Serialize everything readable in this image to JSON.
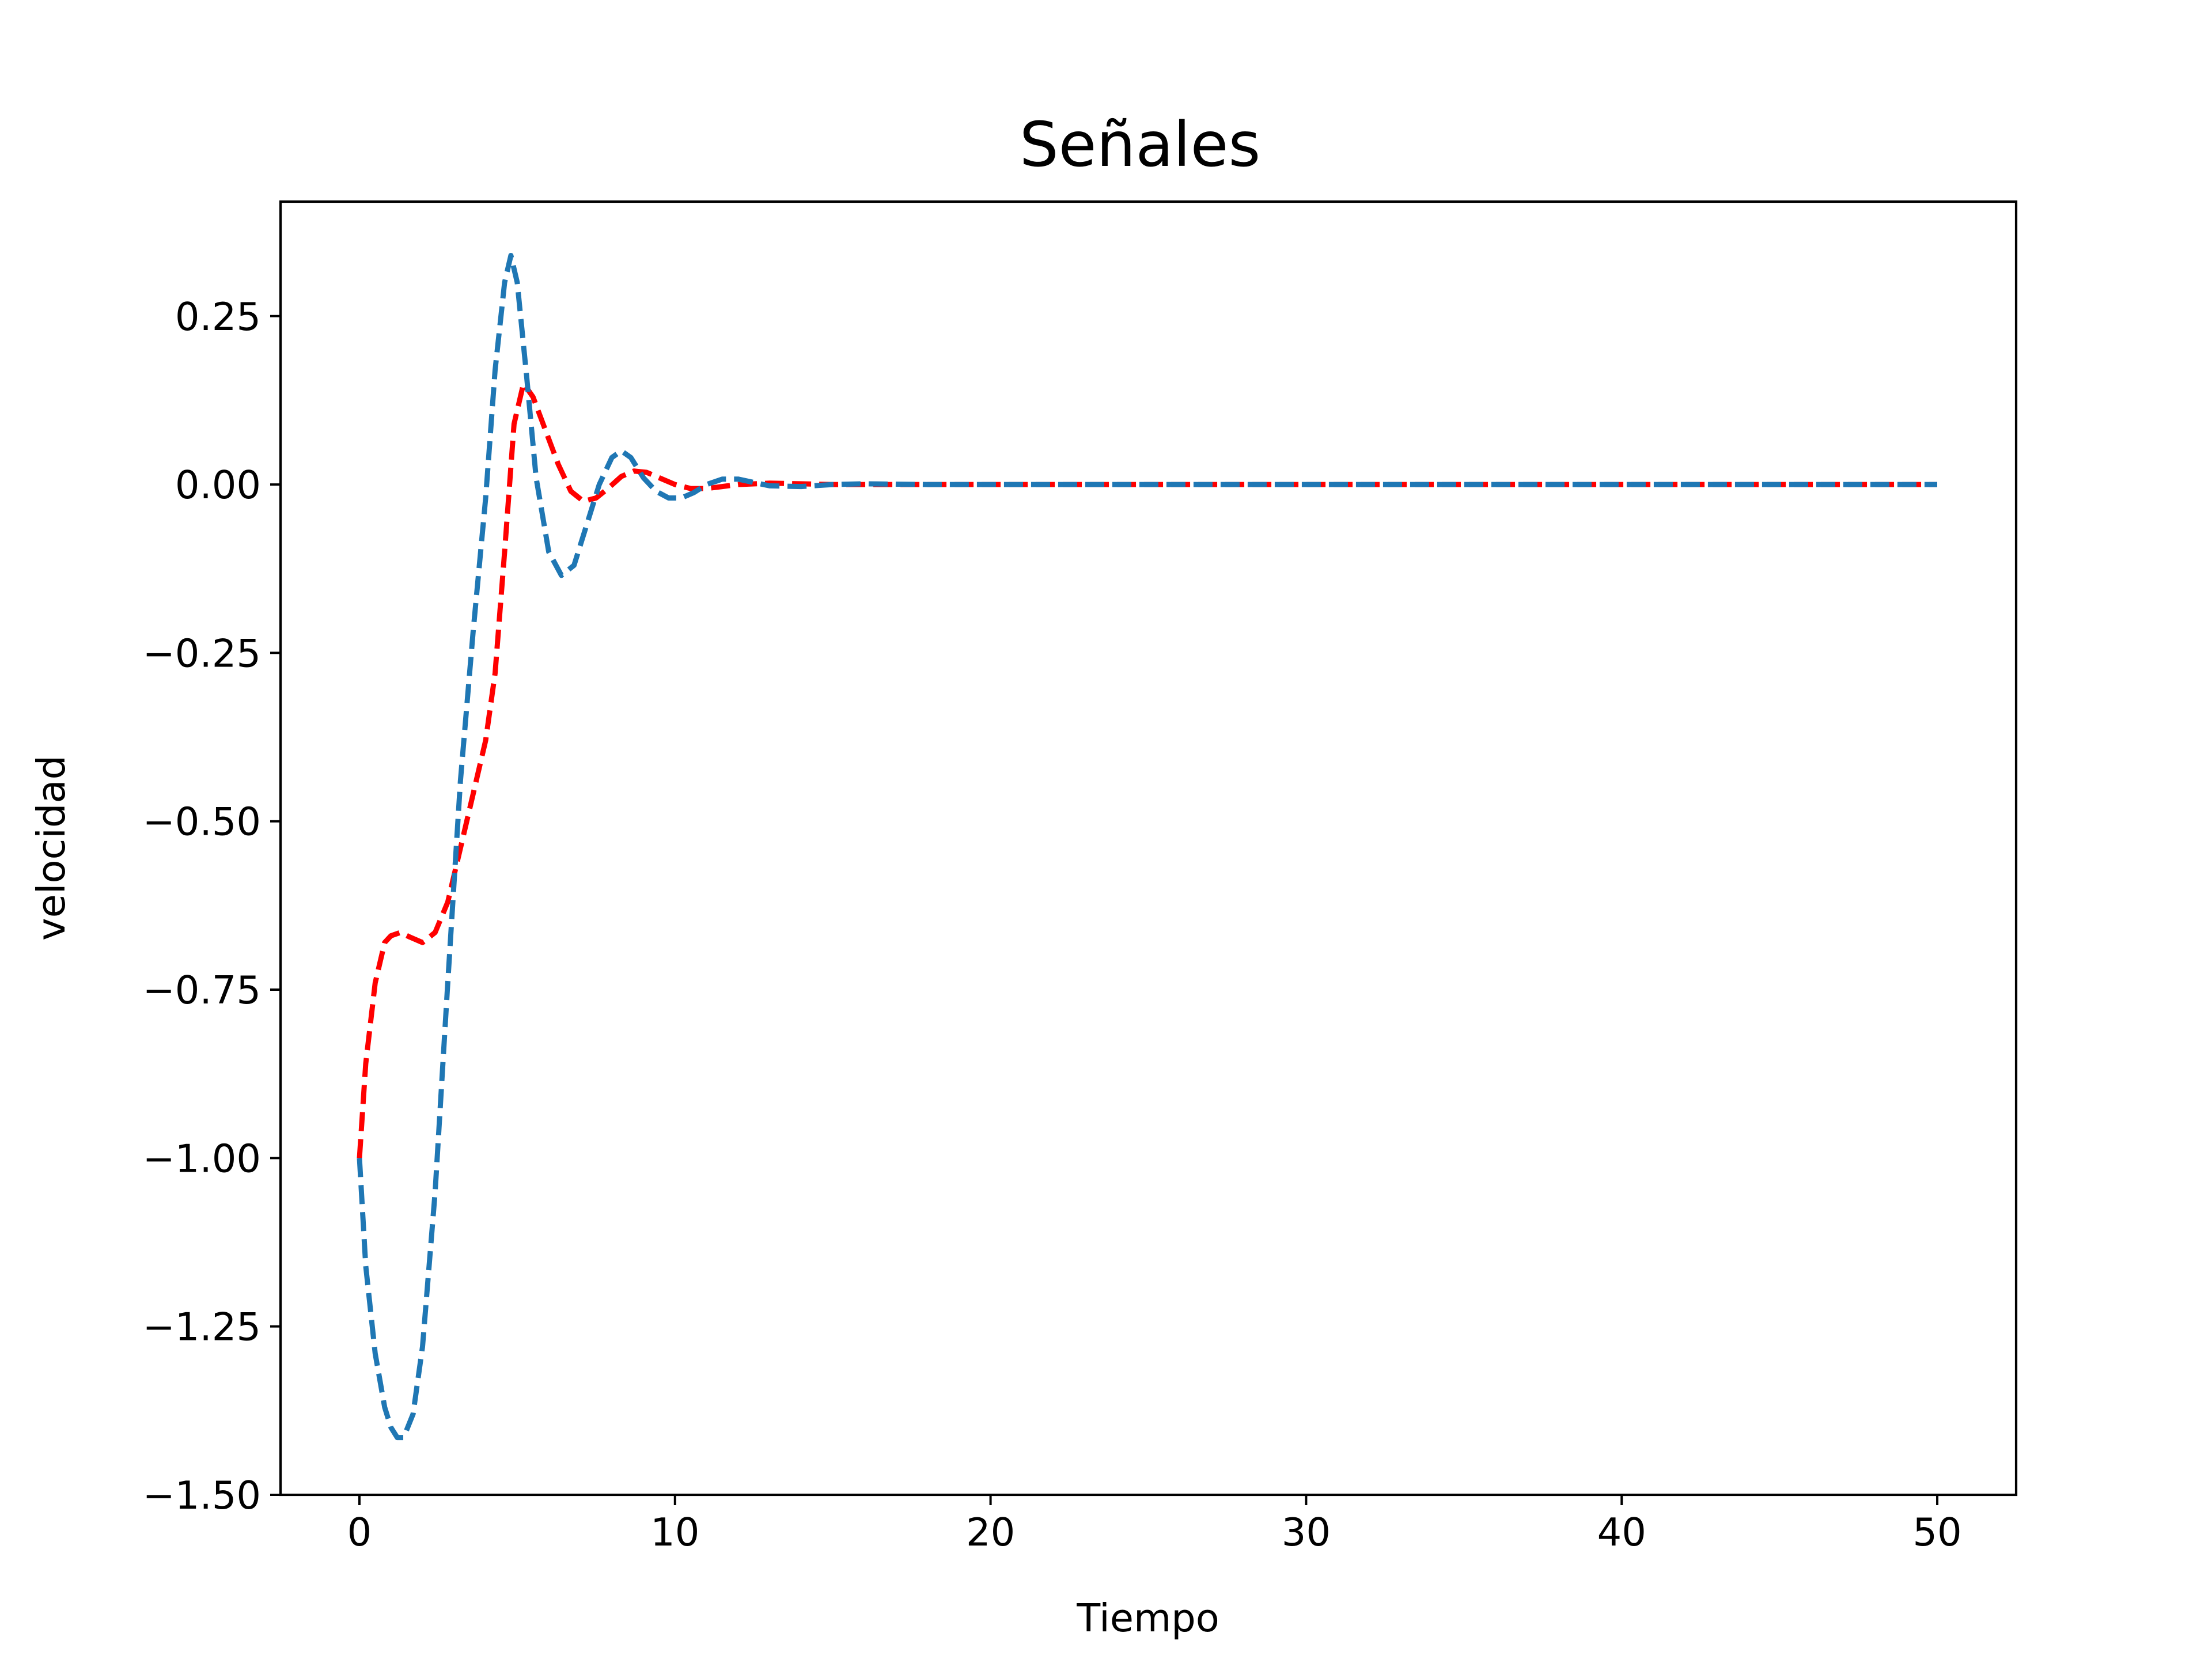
{
  "chart_data": {
    "type": "line",
    "title": "Señales",
    "xlabel": "Tiempo",
    "ylabel": "velocidad",
    "xlim": [
      -2.5,
      52.5
    ],
    "ylim": [
      -1.5,
      0.42
    ],
    "xticks": [
      0,
      10,
      20,
      30,
      40,
      50
    ],
    "xtick_labels": [
      "0",
      "10",
      "20",
      "30",
      "40",
      "50"
    ],
    "yticks": [
      -1.5,
      -1.25,
      -1.0,
      -0.75,
      -0.5,
      -0.25,
      0.0,
      0.25
    ],
    "ytick_labels": [
      "−1.50",
      "−1.25",
      "−1.00",
      "−0.75",
      "−0.50",
      "−0.25",
      "0.00",
      "0.25"
    ],
    "grid": false,
    "series": [
      {
        "color": "#ff0000",
        "linestyle": "dashed",
        "x": [
          0,
          0.2,
          0.5,
          0.8,
          1.0,
          1.3,
          1.6,
          2.0,
          2.4,
          2.8,
          3.2,
          3.6,
          4.0,
          4.3,
          4.6,
          4.9,
          5.2,
          5.5,
          5.9,
          6.3,
          6.7,
          7.1,
          7.5,
          7.9,
          8.3,
          8.7,
          9.1,
          9.5,
          10.0,
          10.5,
          11.0,
          11.5,
          12.0,
          13.0,
          14.0,
          15.0,
          16.0,
          18.0,
          20.0,
          30.0,
          40.0,
          50.0
        ],
        "y": [
          -1.0,
          -0.86,
          -0.74,
          -0.68,
          -0.67,
          -0.665,
          -0.672,
          -0.68,
          -0.665,
          -0.62,
          -0.54,
          -0.46,
          -0.38,
          -0.28,
          -0.1,
          0.09,
          0.15,
          0.13,
          0.08,
          0.03,
          -0.01,
          -0.025,
          -0.02,
          -0.005,
          0.012,
          0.02,
          0.018,
          0.01,
          0.0,
          -0.006,
          -0.006,
          -0.003,
          0.0,
          0.002,
          0.001,
          0.0,
          0.0,
          0.0,
          0.0,
          0.0,
          0.0,
          0.0
        ]
      },
      {
        "color": "#1f77b4",
        "linestyle": "dashed",
        "x": [
          0,
          0.2,
          0.5,
          0.8,
          1.0,
          1.2,
          1.4,
          1.7,
          2.0,
          2.4,
          2.8,
          3.2,
          3.6,
          4.0,
          4.3,
          4.6,
          4.8,
          5.0,
          5.3,
          5.6,
          6.0,
          6.4,
          6.8,
          7.2,
          7.6,
          8.0,
          8.3,
          8.6,
          9.0,
          9.4,
          9.8,
          10.2,
          10.6,
          11.0,
          11.5,
          12.0,
          12.5,
          13.0,
          14.0,
          15.0,
          16.0,
          18.0,
          20.0,
          30.0,
          40.0,
          50.0
        ],
        "y": [
          -1.0,
          -1.16,
          -1.29,
          -1.37,
          -1.4,
          -1.415,
          -1.415,
          -1.38,
          -1.28,
          -1.05,
          -0.74,
          -0.44,
          -0.22,
          -0.02,
          0.17,
          0.3,
          0.34,
          0.3,
          0.16,
          0.01,
          -0.1,
          -0.135,
          -0.12,
          -0.06,
          0.0,
          0.04,
          0.05,
          0.04,
          0.01,
          -0.01,
          -0.02,
          -0.02,
          -0.012,
          0.0,
          0.008,
          0.008,
          0.003,
          -0.002,
          -0.003,
          0.0,
          0.001,
          0.0,
          0.0,
          0.0,
          0.0,
          0.0
        ]
      }
    ]
  }
}
